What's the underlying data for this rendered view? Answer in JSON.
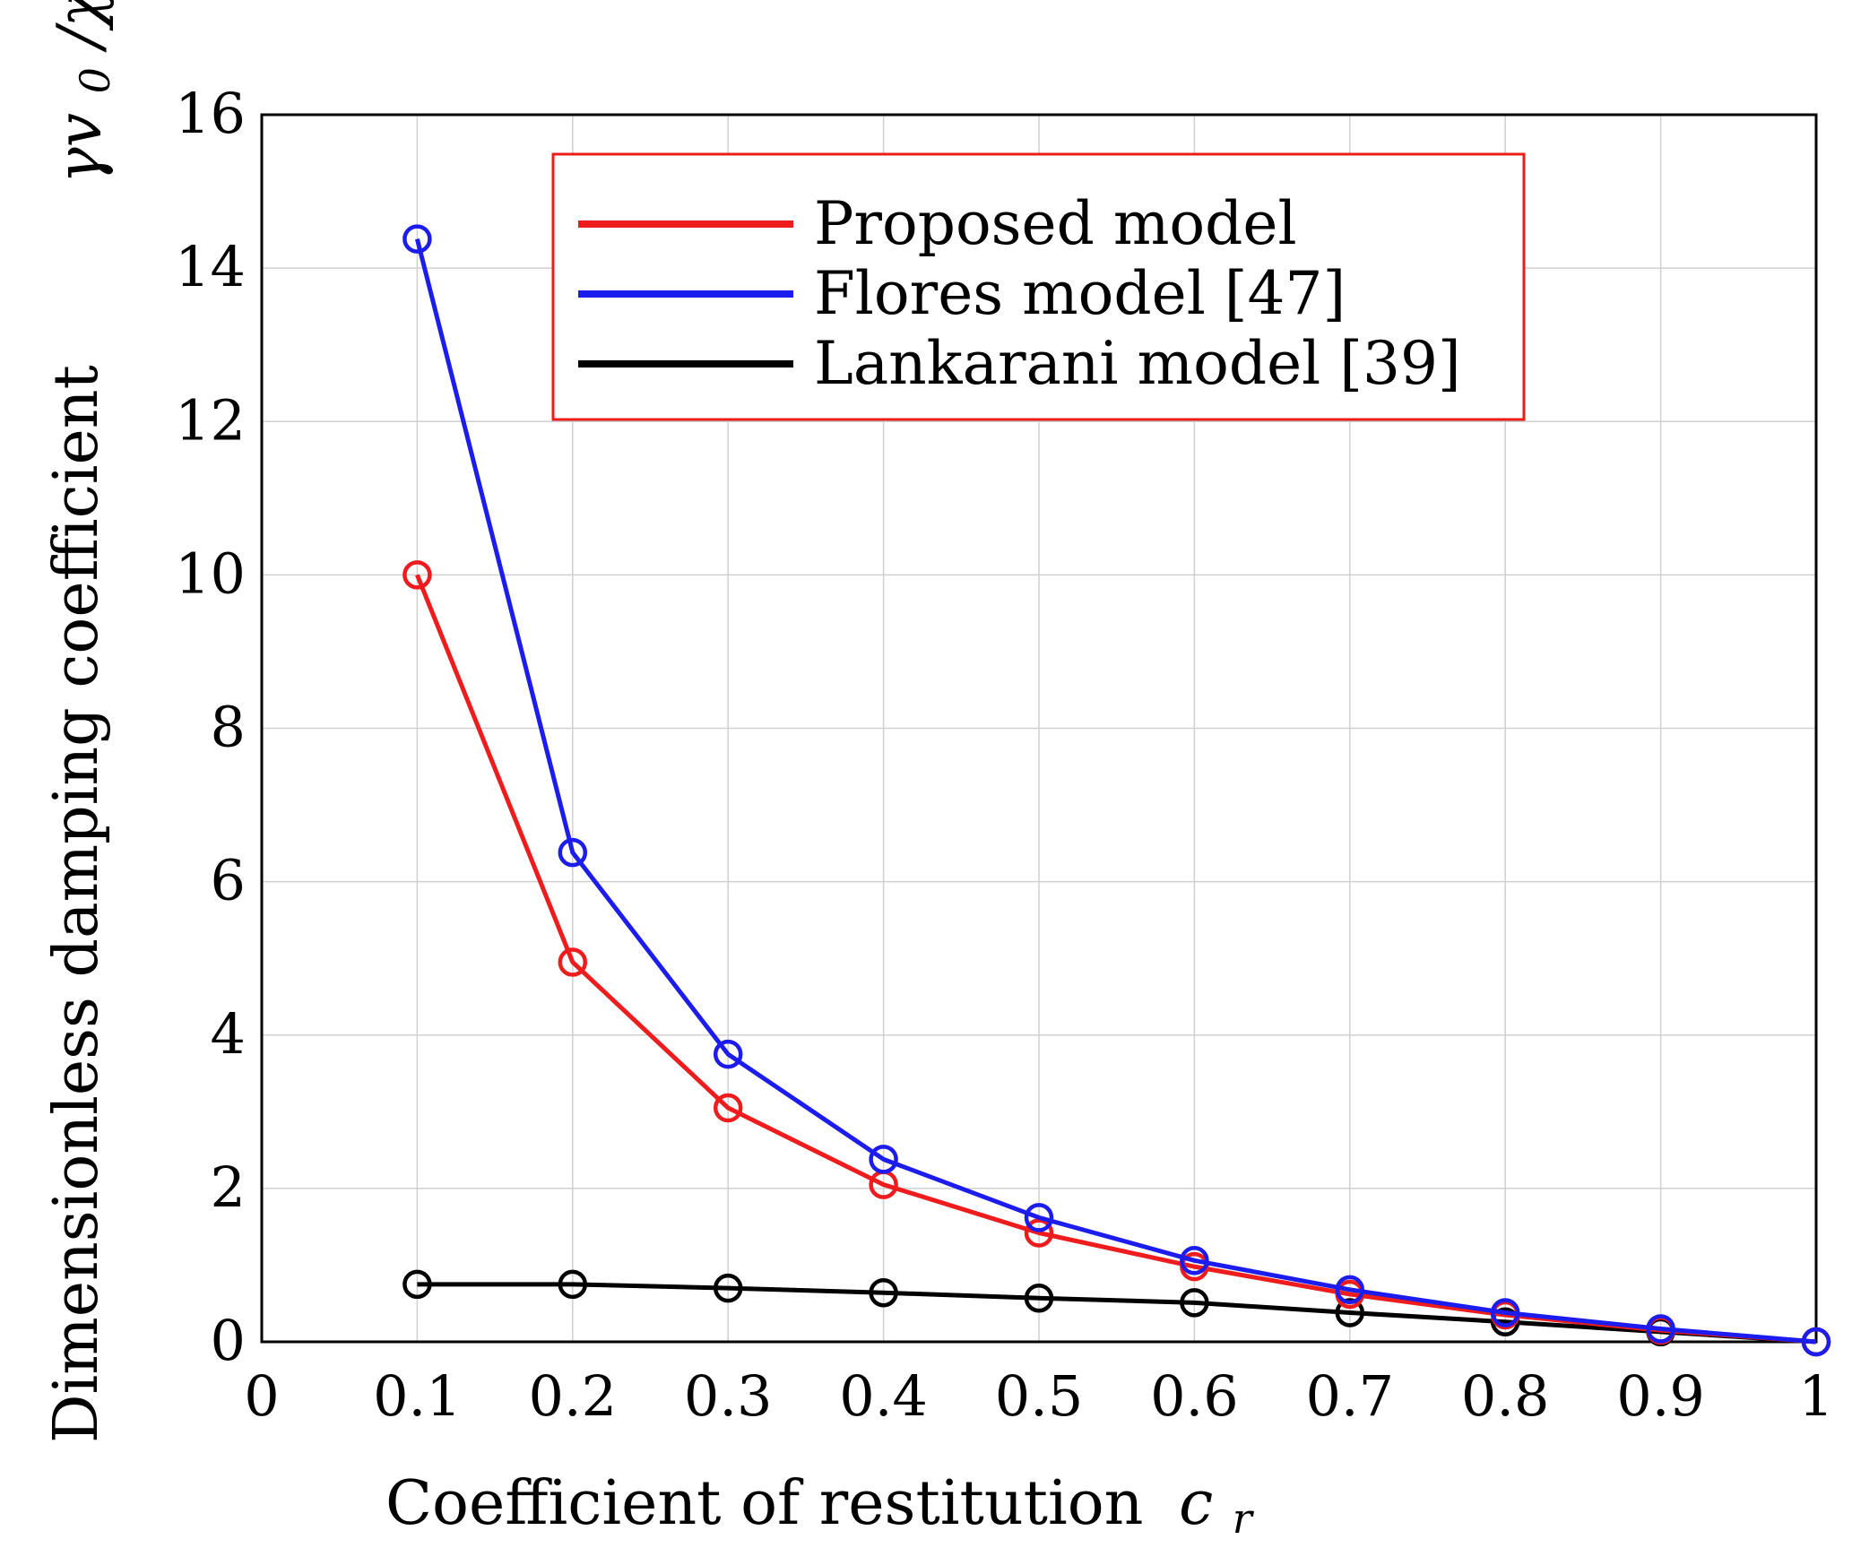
{
  "chart_data": {
    "type": "line",
    "title": "",
    "xlabel": "Coefficient of restitution",
    "xlabel_symbol": "c",
    "xlabel_symbol_sub": "r",
    "ylabel": "Dimensionless damping coefficient",
    "ylabel_symbol": "γv",
    "ylabel_symbol_sub": "0",
    "ylabel_symbol_tail": "/χ",
    "xlim": [
      0,
      1
    ],
    "ylim": [
      0,
      16
    ],
    "xticks": [
      "0",
      "0.1",
      "0.2",
      "0.3",
      "0.4",
      "0.5",
      "0.6",
      "0.7",
      "0.8",
      "0.9",
      "1"
    ],
    "yticks": [
      "0",
      "2",
      "4",
      "6",
      "8",
      "10",
      "12",
      "14",
      "16"
    ],
    "grid": true,
    "legend_position": "top-center",
    "x": [
      0.1,
      0.2,
      0.3,
      0.4,
      0.5,
      0.6,
      0.7,
      0.8,
      0.9,
      1.0
    ],
    "series": [
      {
        "name": "Proposed model",
        "color": "#ee1c1c",
        "values": [
          10.0,
          4.95,
          3.05,
          2.05,
          1.42,
          0.98,
          0.62,
          0.35,
          0.15,
          0.0
        ]
      },
      {
        "name": "Flores model [47]",
        "color": "#1c1cee",
        "values": [
          14.38,
          6.38,
          3.75,
          2.38,
          1.62,
          1.06,
          0.68,
          0.38,
          0.17,
          0.0
        ]
      },
      {
        "name": "Lankarani model [39]",
        "color": "#000000",
        "values": [
          0.75,
          0.75,
          0.7,
          0.64,
          0.57,
          0.51,
          0.38,
          0.26,
          0.13,
          0.0
        ]
      }
    ],
    "legend_border_color": "#ee1c1c"
  }
}
